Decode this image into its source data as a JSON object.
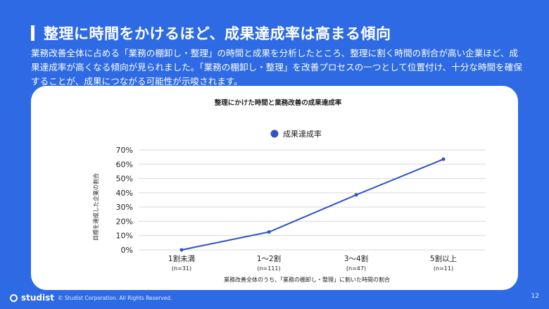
{
  "slide": {
    "title": "整理に時間をかけるほど、成果達成率は高まる傾向",
    "description": "業務改善全体に占める「業務の棚卸し・整理」の時間と成果を分析したところ、整理に割く時間の割合が高い企業ほど、成果達成率が高くなる傾向が見られました。「業務の棚卸し・整理」を改善プロセスの一つとして位置付け、十分な時間を確保することが、成果につながる可能性が示唆されます。",
    "logo_text": "studist",
    "copyright": "© Studist Corporation. All Rights Reserved.",
    "page_number": "12"
  },
  "colors": {
    "background": "#2d6ae3",
    "line": "#2f53c6",
    "grid": "#d9d9d9"
  },
  "chart_data": {
    "type": "line",
    "title": "整理にかけた時間と業務改善の成果達成率",
    "xlabel": "業務改善全体のうち、「業務の棚卸し・整理」に割いた時間の割合",
    "ylabel": "目標を達成した企業の割合",
    "categories": [
      "1割未満",
      "1〜2割",
      "3〜4割",
      "5割以上"
    ],
    "category_notes": [
      "(n=31)",
      "(n=111)",
      "(n=47)",
      "(n=11)"
    ],
    "ylim": [
      0,
      70
    ],
    "yticks": [
      0,
      10,
      20,
      30,
      40,
      50,
      60,
      70
    ],
    "ytick_suffix": "%",
    "grid": true,
    "legend_position": "top",
    "series": [
      {
        "name": "成果達成率",
        "values": [
          0,
          12.5,
          38.5,
          63.5
        ]
      }
    ]
  }
}
